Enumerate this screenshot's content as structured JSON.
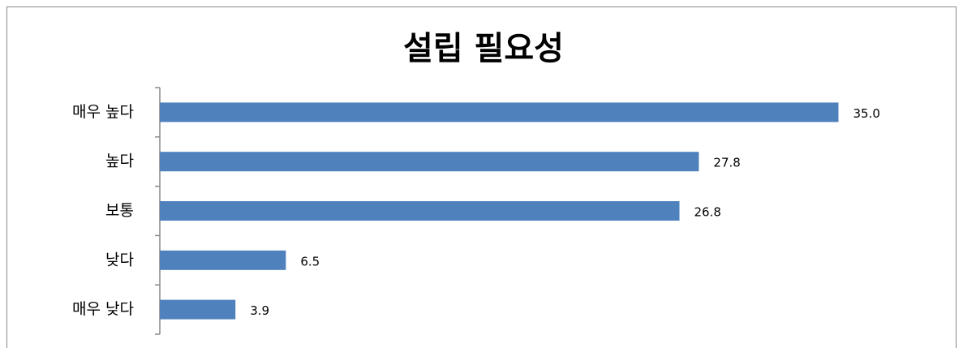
{
  "chart_data": {
    "type": "bar",
    "orientation": "horizontal",
    "title": "설립 필요성",
    "categories": [
      "매우 높다",
      "높다",
      "보통",
      "낮다",
      "매우 낮다"
    ],
    "values": [
      35.0,
      27.8,
      26.8,
      6.5,
      3.9
    ],
    "value_labels": [
      "35.0",
      "27.8",
      "26.8",
      "6.5",
      "3.9"
    ],
    "color": "#4f81bd",
    "xlim": [
      0,
      40
    ]
  }
}
